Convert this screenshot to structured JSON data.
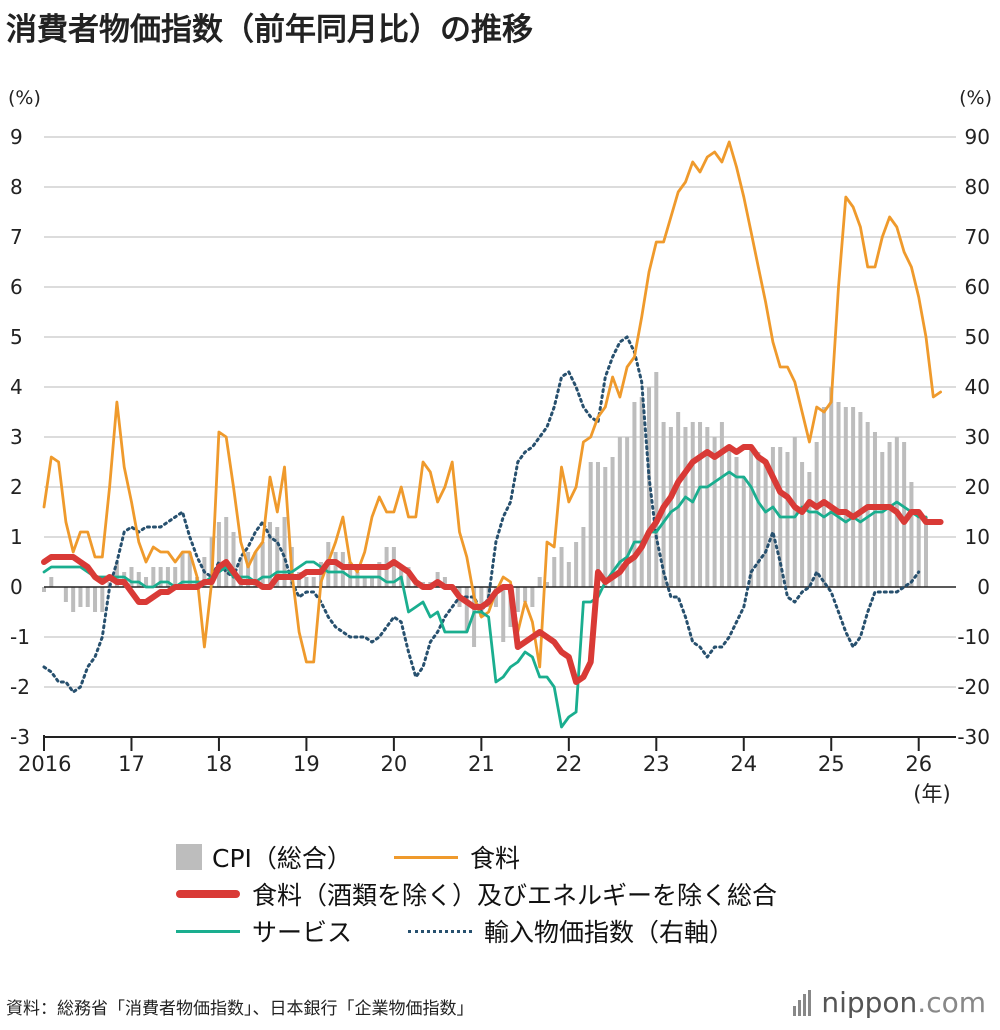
{
  "title": "消費者物価指数（前年同月比）の推移",
  "colors": {
    "cpi": "#bdbdbd",
    "food": "#ef9a2c",
    "core": "#d93a36",
    "services": "#1aae8f",
    "import": "#27506e",
    "grid": "#d0d0d0",
    "axis": "#222222"
  },
  "legend": {
    "cpi": "CPI（総合）",
    "food": "食料",
    "core": "食料（酒類を除く）及びエネルギーを除く総合",
    "services": "サービス",
    "import": "輸入物価指数（右軸）"
  },
  "source": "資料：総務省「消費者物価指数」、日本銀行「企業物価指数」",
  "brand": {
    "name": "nippon",
    "domain": ".com"
  },
  "chart_data": {
    "type": "line",
    "left_axis": {
      "unit": "(%)",
      "range": [
        -3,
        9
      ],
      "ticks": [
        -3,
        -2,
        -1,
        0,
        1,
        2,
        3,
        4,
        5,
        6,
        7,
        8,
        9
      ]
    },
    "right_axis": {
      "unit": "(%)",
      "range": [
        -30,
        90
      ],
      "ticks": [
        -30,
        -20,
        -10,
        0,
        10,
        20,
        30,
        40,
        50,
        60,
        70,
        80,
        90
      ]
    },
    "x_axis": {
      "unit": "(年)",
      "start_year": 2016,
      "labels": [
        "2016",
        "17",
        "18",
        "19",
        "20",
        "21",
        "22",
        "23",
        "24",
        "25",
        "26"
      ]
    },
    "grid": true,
    "legend_position": "bottom",
    "series": [
      {
        "name": "CPI（総合）",
        "kind": "bar",
        "axis": "left",
        "key": "cpi",
        "start": "2016-01",
        "values": [
          -0.1,
          0.2,
          0.0,
          -0.3,
          -0.5,
          -0.4,
          -0.4,
          -0.5,
          -0.5,
          0.1,
          0.5,
          0.3,
          0.4,
          0.3,
          0.2,
          0.4,
          0.4,
          0.4,
          0.4,
          0.7,
          0.7,
          0.2,
          0.6,
          1.0,
          1.3,
          1.4,
          1.1,
          0.6,
          0.7,
          0.7,
          0.9,
          1.3,
          1.2,
          1.4,
          0.8,
          0.3,
          0.2,
          0.2,
          0.5,
          0.9,
          0.7,
          0.7,
          0.5,
          0.3,
          0.2,
          0.2,
          0.5,
          0.8,
          0.8,
          0.4,
          0.4,
          0.1,
          0.1,
          0.1,
          0.3,
          0.2,
          0.0,
          -0.4,
          -0.9,
          -1.2,
          -0.6,
          -0.4,
          -0.4,
          -1.1,
          -0.8,
          -0.5,
          -0.3,
          -0.4,
          0.2,
          0.1,
          0.6,
          0.8,
          0.5,
          0.9,
          1.2,
          2.5,
          2.5,
          2.4,
          2.6,
          3.0,
          3.0,
          3.7,
          3.8,
          4.0,
          4.3,
          3.3,
          3.2,
          3.5,
          3.2,
          3.3,
          3.3,
          3.2,
          3.0,
          3.3,
          2.8,
          2.6,
          2.2,
          2.8,
          2.7,
          2.5,
          2.8,
          2.8,
          2.7,
          3.0,
          2.5,
          2.3,
          2.9,
          3.6,
          4.0,
          3.7,
          3.6,
          3.6,
          3.5,
          3.3,
          3.1,
          2.7,
          2.9,
          3.0,
          2.9,
          2.1,
          1.5,
          1.4
        ]
      },
      {
        "name": "食料",
        "kind": "line",
        "axis": "left",
        "key": "food",
        "start": "2016-01",
        "values": [
          1.6,
          2.6,
          2.5,
          1.3,
          0.7,
          1.1,
          1.1,
          0.6,
          0.6,
          2.0,
          3.7,
          2.4,
          1.7,
          0.9,
          0.5,
          0.8,
          0.7,
          0.7,
          0.5,
          0.7,
          0.7,
          0.2,
          -1.2,
          0.1,
          3.1,
          3.0,
          2.0,
          0.9,
          0.4,
          0.7,
          0.9,
          2.2,
          1.5,
          2.4,
          0.3,
          -0.9,
          -1.5,
          -1.5,
          0.1,
          0.5,
          0.9,
          1.4,
          0.5,
          0.3,
          0.7,
          1.4,
          1.8,
          1.5,
          1.5,
          2.0,
          1.4,
          1.4,
          2.5,
          2.3,
          1.7,
          2.0,
          2.5,
          1.1,
          0.6,
          -0.2,
          -0.6,
          -0.5,
          -0.1,
          0.2,
          0.1,
          -0.9,
          -0.3,
          -0.7,
          -1.6,
          0.9,
          0.8,
          2.4,
          1.7,
          2.0,
          2.9,
          3.0,
          3.4,
          3.6,
          4.2,
          3.8,
          4.4,
          4.6,
          5.4,
          6.3,
          6.9,
          6.9,
          7.4,
          7.9,
          8.1,
          8.5,
          8.3,
          8.6,
          8.7,
          8.5,
          8.9,
          8.4,
          7.8,
          7.1,
          6.4,
          5.7,
          4.9,
          4.4,
          4.4,
          4.1,
          3.5,
          2.9,
          3.6,
          3.5,
          3.7,
          6.0,
          7.8,
          7.6,
          7.2,
          6.4,
          6.4,
          7.0,
          7.4,
          7.2,
          6.7,
          6.4,
          5.8,
          5.0,
          3.8,
          3.9
        ]
      },
      {
        "name": "食料（酒類を除く）及びエネルギーを除く総合",
        "kind": "line",
        "axis": "left",
        "key": "core",
        "start": "2016-01",
        "values": [
          0.5,
          0.6,
          0.6,
          0.6,
          0.6,
          0.5,
          0.4,
          0.2,
          0.1,
          0.2,
          0.1,
          0.1,
          -0.1,
          -0.3,
          -0.3,
          -0.2,
          -0.1,
          -0.1,
          0.0,
          0.0,
          0.0,
          0.0,
          0.1,
          0.1,
          0.4,
          0.5,
          0.3,
          0.1,
          0.1,
          0.1,
          0.0,
          0.0,
          0.2,
          0.2,
          0.2,
          0.2,
          0.3,
          0.3,
          0.3,
          0.5,
          0.5,
          0.4,
          0.4,
          0.4,
          0.4,
          0.4,
          0.4,
          0.4,
          0.5,
          0.4,
          0.3,
          0.1,
          0.0,
          0.0,
          0.1,
          0.0,
          0.0,
          -0.2,
          -0.3,
          -0.4,
          -0.4,
          -0.3,
          -0.1,
          0.0,
          0.0,
          -1.2,
          -1.1,
          -1.0,
          -0.9,
          -1.0,
          -1.1,
          -1.3,
          -1.4,
          -1.9,
          -1.8,
          -1.5,
          0.3,
          0.1,
          0.2,
          0.3,
          0.5,
          0.6,
          0.8,
          1.1,
          1.3,
          1.6,
          1.8,
          2.1,
          2.3,
          2.5,
          2.6,
          2.7,
          2.6,
          2.7,
          2.8,
          2.7,
          2.8,
          2.8,
          2.6,
          2.5,
          2.2,
          1.9,
          1.8,
          1.6,
          1.5,
          1.7,
          1.6,
          1.7,
          1.6,
          1.5,
          1.5,
          1.4,
          1.5,
          1.6,
          1.6,
          1.6,
          1.6,
          1.5,
          1.3,
          1.5,
          1.5,
          1.3,
          1.3,
          1.3
        ]
      },
      {
        "name": "サービス",
        "kind": "line",
        "axis": "left",
        "key": "services",
        "start": "2016-01",
        "values": [
          0.3,
          0.4,
          0.4,
          0.4,
          0.4,
          0.4,
          0.3,
          0.2,
          0.2,
          0.2,
          0.2,
          0.2,
          0.1,
          0.1,
          0.0,
          0.0,
          0.1,
          0.1,
          0.0,
          0.1,
          0.1,
          0.1,
          0.1,
          0.2,
          0.3,
          0.4,
          0.2,
          0.2,
          0.2,
          0.1,
          0.2,
          0.2,
          0.3,
          0.3,
          0.3,
          0.4,
          0.5,
          0.5,
          0.4,
          0.3,
          0.3,
          0.3,
          0.2,
          0.2,
          0.2,
          0.2,
          0.2,
          0.1,
          0.1,
          0.2,
          -0.5,
          -0.4,
          -0.3,
          -0.6,
          -0.5,
          -0.9,
          -0.9,
          -0.9,
          -0.9,
          -0.5,
          -0.5,
          -0.6,
          -1.9,
          -1.8,
          -1.6,
          -1.5,
          -1.3,
          -1.4,
          -1.8,
          -1.8,
          -2.0,
          -2.8,
          -2.6,
          -2.5,
          -0.3,
          -0.3,
          -0.2,
          0.1,
          0.3,
          0.5,
          0.6,
          0.9,
          0.9,
          1.1,
          1.1,
          1.3,
          1.5,
          1.6,
          1.8,
          1.7,
          2.0,
          2.0,
          2.1,
          2.2,
          2.3,
          2.2,
          2.2,
          2.0,
          1.7,
          1.5,
          1.6,
          1.4,
          1.4,
          1.4,
          1.6,
          1.5,
          1.5,
          1.4,
          1.5,
          1.4,
          1.3,
          1.4,
          1.3,
          1.4,
          1.5,
          1.5,
          1.6,
          1.7,
          1.6,
          1.5,
          1.4,
          1.4
        ]
      },
      {
        "name": "輸入物価指数（右軸）",
        "kind": "line",
        "axis": "right",
        "key": "import",
        "style": "dotted",
        "start": "2016-01",
        "values": [
          -16,
          -17,
          -19,
          -19,
          -21,
          -20,
          -16,
          -14,
          -10,
          0,
          5,
          11,
          12,
          11,
          12,
          12,
          12,
          13,
          14,
          15,
          10,
          6,
          3,
          2,
          5,
          3,
          2,
          6,
          8,
          11,
          13,
          10,
          9,
          6,
          1,
          -2,
          -1,
          -1,
          -3,
          -6,
          -8,
          -9,
          -10,
          -10,
          -10,
          -11,
          -10,
          -8,
          -6,
          -7,
          -13,
          -18,
          -16,
          -11,
          -9,
          -6,
          -4,
          -2,
          -2,
          -2,
          -5,
          -2,
          9,
          14,
          17,
          25,
          27,
          28,
          30,
          32,
          36,
          42,
          43,
          40,
          36,
          34,
          33,
          42,
          46,
          49,
          50,
          47,
          41,
          22,
          10,
          3,
          -2,
          -2,
          -6,
          -11,
          -12,
          -14,
          -12,
          -12,
          -10,
          -7,
          -4,
          3,
          5,
          7,
          11,
          5,
          -2,
          -3,
          -1,
          0,
          3,
          1,
          -1,
          -5,
          -9,
          -12,
          -10,
          -5,
          -1,
          -1,
          -1,
          -1,
          0,
          1,
          3
        ]
      }
    ]
  }
}
